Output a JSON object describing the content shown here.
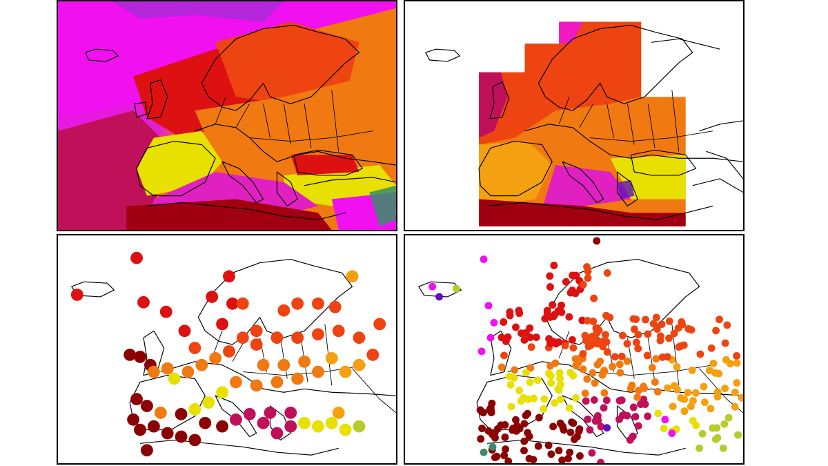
{
  "colors": {
    "darkred": "#8b0000",
    "red": "#dd1111",
    "redorange": "#ee4411",
    "orange": "#f07a11",
    "amber": "#f5a010",
    "yellow": "#e8e000",
    "lime": "#b6cc2a",
    "teal": "#3a8d6a",
    "magenta": "#f010f0",
    "crimson": "#c0105a",
    "purple": "#6010c0"
  },
  "panels": [
    {
      "id": "model-field-top-left",
      "kind": "gridded-field"
    },
    {
      "id": "model-field-top-right",
      "kind": "gridded-field-subdomain"
    },
    {
      "id": "station-dots-bottom-left",
      "kind": "station-points"
    },
    {
      "id": "station-dots-bottom-right",
      "kind": "station-points"
    }
  ]
}
